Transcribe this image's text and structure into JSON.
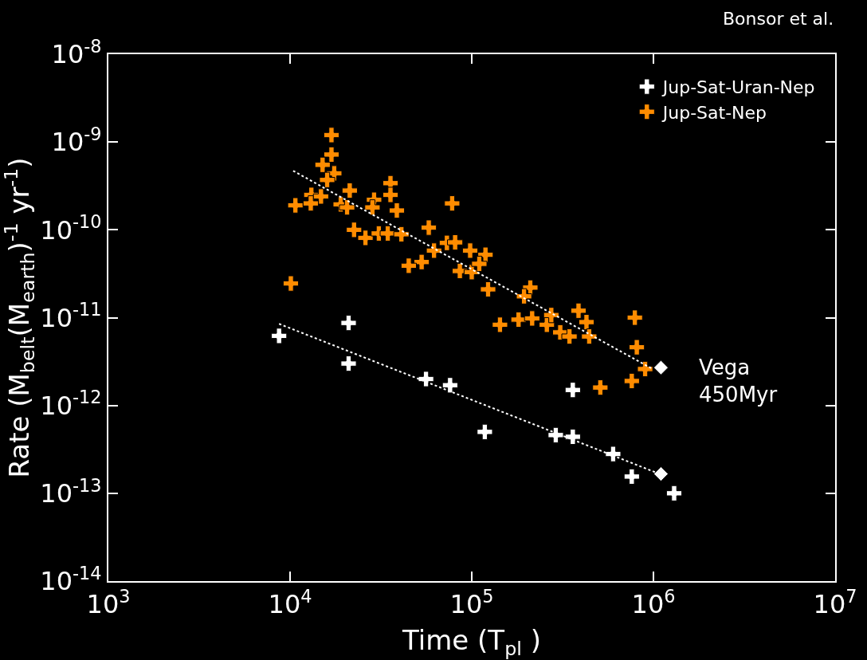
{
  "chart_data": {
    "type": "scatter",
    "xlabel": "Time (T$_{pl}$ )",
    "ylabel": "Rate (M$_{belt}$(M$_{earth}$)$^{-1}$ yr$^{-1}$)",
    "log": "xy",
    "grid": false,
    "legend": "top right",
    "marker": "cross",
    "xlim": [
      1000,
      10000000
    ],
    "xticks": [
      {
        "value": 1000,
        "label": "10$^{3}$"
      },
      {
        "value": 10000,
        "label": "10$^{4}$"
      },
      {
        "value": 100000,
        "label": "10$^{5}$"
      },
      {
        "value": 1000000,
        "label": "10$^{6}$"
      },
      {
        "value": 10000000,
        "label": "10$^{7}$"
      }
    ],
    "ylim": [
      1e-14,
      1e-08
    ],
    "yticks": [
      {
        "value": 1e-14,
        "label": "10$^{-14}$"
      },
      {
        "value": 1e-13,
        "label": "10$^{-13}$"
      },
      {
        "value": 1e-12,
        "label": "10$^{-12}$"
      },
      {
        "value": 1e-11,
        "label": "10$^{-11}$"
      },
      {
        "value": 1e-10,
        "label": "10$^{-10}$"
      },
      {
        "value": 1e-09,
        "label": "10$^{-9}$"
      },
      {
        "value": 1e-08,
        "label": "10$^{-8}$"
      }
    ],
    "series": [
      {
        "name": "Jup-Sat-Uran-Nep",
        "color": "#ffffff",
        "x": [
          8700,
          21000,
          21000,
          56000,
          76000,
          118000,
          290000,
          360000,
          360000,
          600000,
          760000,
          1300000
        ],
        "values": [
          6.2e-12,
          8.7e-12,
          3e-12,
          2e-12,
          1.7e-12,
          5e-13,
          4.6e-13,
          4.4e-13,
          1.5e-12,
          2.8e-13,
          1.55e-13,
          1e-13
        ]
      },
      {
        "name": "Jup-Sat-Nep",
        "color": "#ff8c00",
        "x": [
          16900,
          16900,
          15100,
          17500,
          16000,
          13100,
          14800,
          10700,
          13000,
          19000,
          21300,
          20600,
          29000,
          28400,
          35700,
          35700,
          38700,
          22500,
          26000,
          30800,
          34500,
          41000,
          58000,
          78000,
          73000,
          81000,
          62000,
          98000,
          53000,
          45000,
          86000,
          100000,
          10100,
          119000,
          110000,
          123000,
          210000,
          194000,
          143000,
          181000,
          215000,
          259000,
          274000,
          307000,
          345000,
          387000,
          428000,
          443000,
          790000,
          810000,
          900000,
          760000,
          510000
        ],
        "values": [
          1.2e-09,
          7.2e-10,
          5.5e-10,
          4.4e-10,
          3.7e-10,
          2.5e-10,
          2.4e-10,
          1.9e-10,
          2e-10,
          1.95e-10,
          2.8e-10,
          1.8e-10,
          2.2e-10,
          1.8e-10,
          3.4e-10,
          2.5e-10,
          1.66e-10,
          1e-10,
          8.1e-11,
          9.1e-11,
          9.1e-11,
          8.9e-11,
          1.06e-10,
          2e-10,
          7.1e-11,
          7.2e-11,
          5.8e-11,
          5.8e-11,
          4.3e-11,
          3.9e-11,
          3.4e-11,
          3.3e-11,
          2.45e-11,
          5.2e-11,
          4.1e-11,
          2.1e-11,
          2.2e-11,
          1.75e-11,
          8.3e-12,
          9.5e-12,
          9.8e-12,
          8.3e-12,
          1.07e-11,
          6.8e-12,
          6.1e-12,
          1.2e-11,
          8.9e-12,
          6.1e-12,
          1e-11,
          4.6e-12,
          2.6e-12,
          1.9e-12,
          1.6e-12
        ]
      },
      {
        "color": "#ffffff",
        "marker": "diamond",
        "x": [
          1100000,
          1100000
        ],
        "values": [
          2.7e-12,
          1.66e-13
        ]
      },
      {
        "type": "line",
        "color": "#ffffff",
        "line_style": "dotted",
        "marker": "none",
        "x": [
          8700,
          1050000
        ],
        "values": [
          8.5e-12,
          1.7e-13
        ]
      },
      {
        "type": "line",
        "color": "#ffffff",
        "line_style": "dotted",
        "marker": "none",
        "x": [
          10400,
          990000
        ],
        "values": [
          4.7e-10,
          2.6e-12
        ]
      }
    ],
    "annotations": [
      "Vega\n450Myr",
      "Bonsor et al."
    ]
  }
}
